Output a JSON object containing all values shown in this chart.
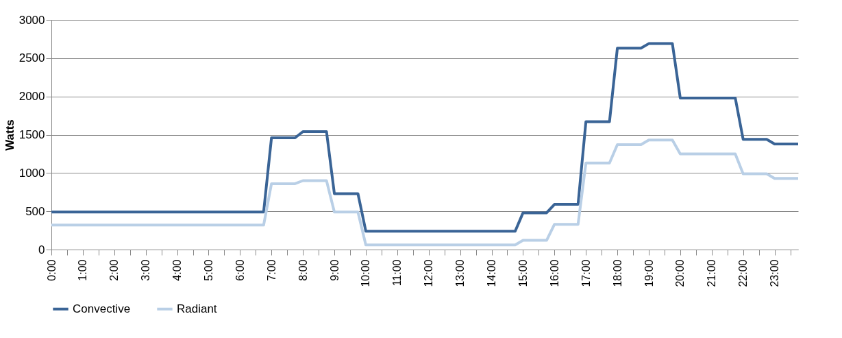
{
  "chart_data": {
    "type": "line",
    "ylabel": "Watts",
    "categories": [
      "0:00",
      null,
      null,
      null,
      "1:00",
      null,
      null,
      null,
      "2:00",
      null,
      null,
      null,
      "3:00",
      null,
      null,
      null,
      "4:00",
      null,
      null,
      null,
      "5:00",
      null,
      null,
      null,
      "6:00",
      null,
      null,
      null,
      "7:00",
      null,
      null,
      null,
      "8:00",
      null,
      null,
      null,
      "9:00",
      null,
      null,
      null,
      "10:00",
      null,
      null,
      null,
      "11:00",
      null,
      null,
      null,
      "12:00",
      null,
      null,
      null,
      "13:00",
      null,
      null,
      null,
      "14:00",
      null,
      null,
      null,
      "15:00",
      null,
      null,
      null,
      "16:00",
      null,
      null,
      null,
      "17:00",
      null,
      null,
      null,
      "18:00",
      null,
      null,
      null,
      "19:00",
      null,
      null,
      null,
      "20:00",
      null,
      null,
      null,
      "21:00",
      null,
      null,
      null,
      "22:00",
      null,
      null,
      null,
      "23:00",
      null,
      null,
      null
    ],
    "series": [
      {
        "name": "Convective",
        "color": "#3a6496",
        "values": [
          490,
          490,
          490,
          490,
          490,
          490,
          490,
          490,
          490,
          490,
          490,
          490,
          490,
          490,
          490,
          490,
          490,
          490,
          490,
          490,
          490,
          490,
          490,
          490,
          490,
          490,
          490,
          490,
          1460,
          1460,
          1460,
          1460,
          1540,
          1540,
          1540,
          1540,
          730,
          730,
          730,
          730,
          240,
          240,
          240,
          240,
          240,
          240,
          240,
          240,
          240,
          240,
          240,
          240,
          240,
          240,
          240,
          240,
          240,
          240,
          240,
          240,
          480,
          480,
          480,
          480,
          590,
          590,
          590,
          590,
          1670,
          1670,
          1670,
          1670,
          2630,
          2630,
          2630,
          2630,
          2690,
          2690,
          2690,
          2690,
          1980,
          1980,
          1980,
          1980,
          1980,
          1980,
          1980,
          1980,
          1440,
          1440,
          1440,
          1440,
          1380,
          1380,
          1380,
          1380
        ]
      },
      {
        "name": "Radiant",
        "color": "#b9cfe6",
        "values": [
          320,
          320,
          320,
          320,
          320,
          320,
          320,
          320,
          320,
          320,
          320,
          320,
          320,
          320,
          320,
          320,
          320,
          320,
          320,
          320,
          320,
          320,
          320,
          320,
          320,
          320,
          320,
          320,
          860,
          860,
          860,
          860,
          900,
          900,
          900,
          900,
          490,
          490,
          490,
          490,
          60,
          60,
          60,
          60,
          60,
          60,
          60,
          60,
          60,
          60,
          60,
          60,
          60,
          60,
          60,
          60,
          60,
          60,
          60,
          60,
          120,
          120,
          120,
          120,
          330,
          330,
          330,
          330,
          1130,
          1130,
          1130,
          1130,
          1370,
          1370,
          1370,
          1370,
          1430,
          1430,
          1430,
          1430,
          1250,
          1250,
          1250,
          1250,
          1250,
          1250,
          1250,
          1250,
          990,
          990,
          990,
          990,
          930,
          930,
          930,
          930
        ]
      }
    ],
    "ylim": [
      0,
      3000
    ],
    "yticks": [
      0,
      500,
      1000,
      1500,
      2000,
      2500,
      3000
    ],
    "grid": "y",
    "legend": "bottom",
    "marker": "none",
    "line_style": "solid"
  }
}
